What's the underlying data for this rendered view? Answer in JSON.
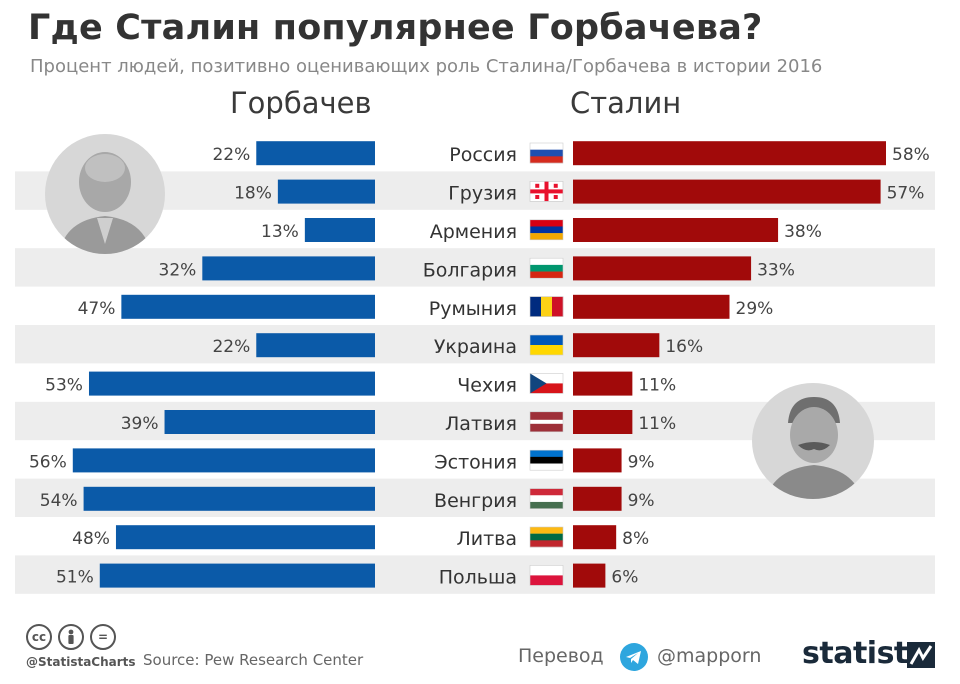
{
  "title": "Где Сталин популярнее Горбачева?",
  "subtitle": "Процент людей, позитивно оценивающих роль Сталина/Горбачева в истории 2016",
  "header_left": "Горбачев",
  "header_right": "Сталин",
  "footer": {
    "handle": "@StatistaCharts",
    "source": "Source: Pew Research Center",
    "translation_label": "Перевод",
    "telegram_handle": "@mapporn",
    "brand": "statista",
    "cc_icons": [
      "cc",
      "by",
      "="
    ]
  },
  "colors": {
    "gorbachev": "#0b5aa8",
    "stalin": "#a10a0a",
    "row_stripe": "#ededed"
  },
  "chart_data": {
    "type": "bar",
    "categories": [
      "Россия",
      "Грузия",
      "Армения",
      "Болгария",
      "Румыния",
      "Украина",
      "Чехия",
      "Латвия",
      "Эстония",
      "Венгрия",
      "Литва",
      "Польша"
    ],
    "series": [
      {
        "name": "Горбачев",
        "values": [
          22,
          18,
          13,
          32,
          47,
          22,
          53,
          39,
          56,
          54,
          48,
          51
        ]
      },
      {
        "name": "Сталин",
        "values": [
          58,
          57,
          38,
          33,
          29,
          16,
          11,
          11,
          9,
          9,
          8,
          6
        ]
      }
    ],
    "value_format": "{v}%",
    "flags": [
      "russia-flag",
      "georgia-flag",
      "armenia-flag",
      "bulgaria-flag",
      "romania-flag",
      "ukraine-flag",
      "czechia-flag",
      "latvia-flag",
      "estonia-flag",
      "hungary-flag",
      "lithuania-flag",
      "poland-flag"
    ]
  }
}
